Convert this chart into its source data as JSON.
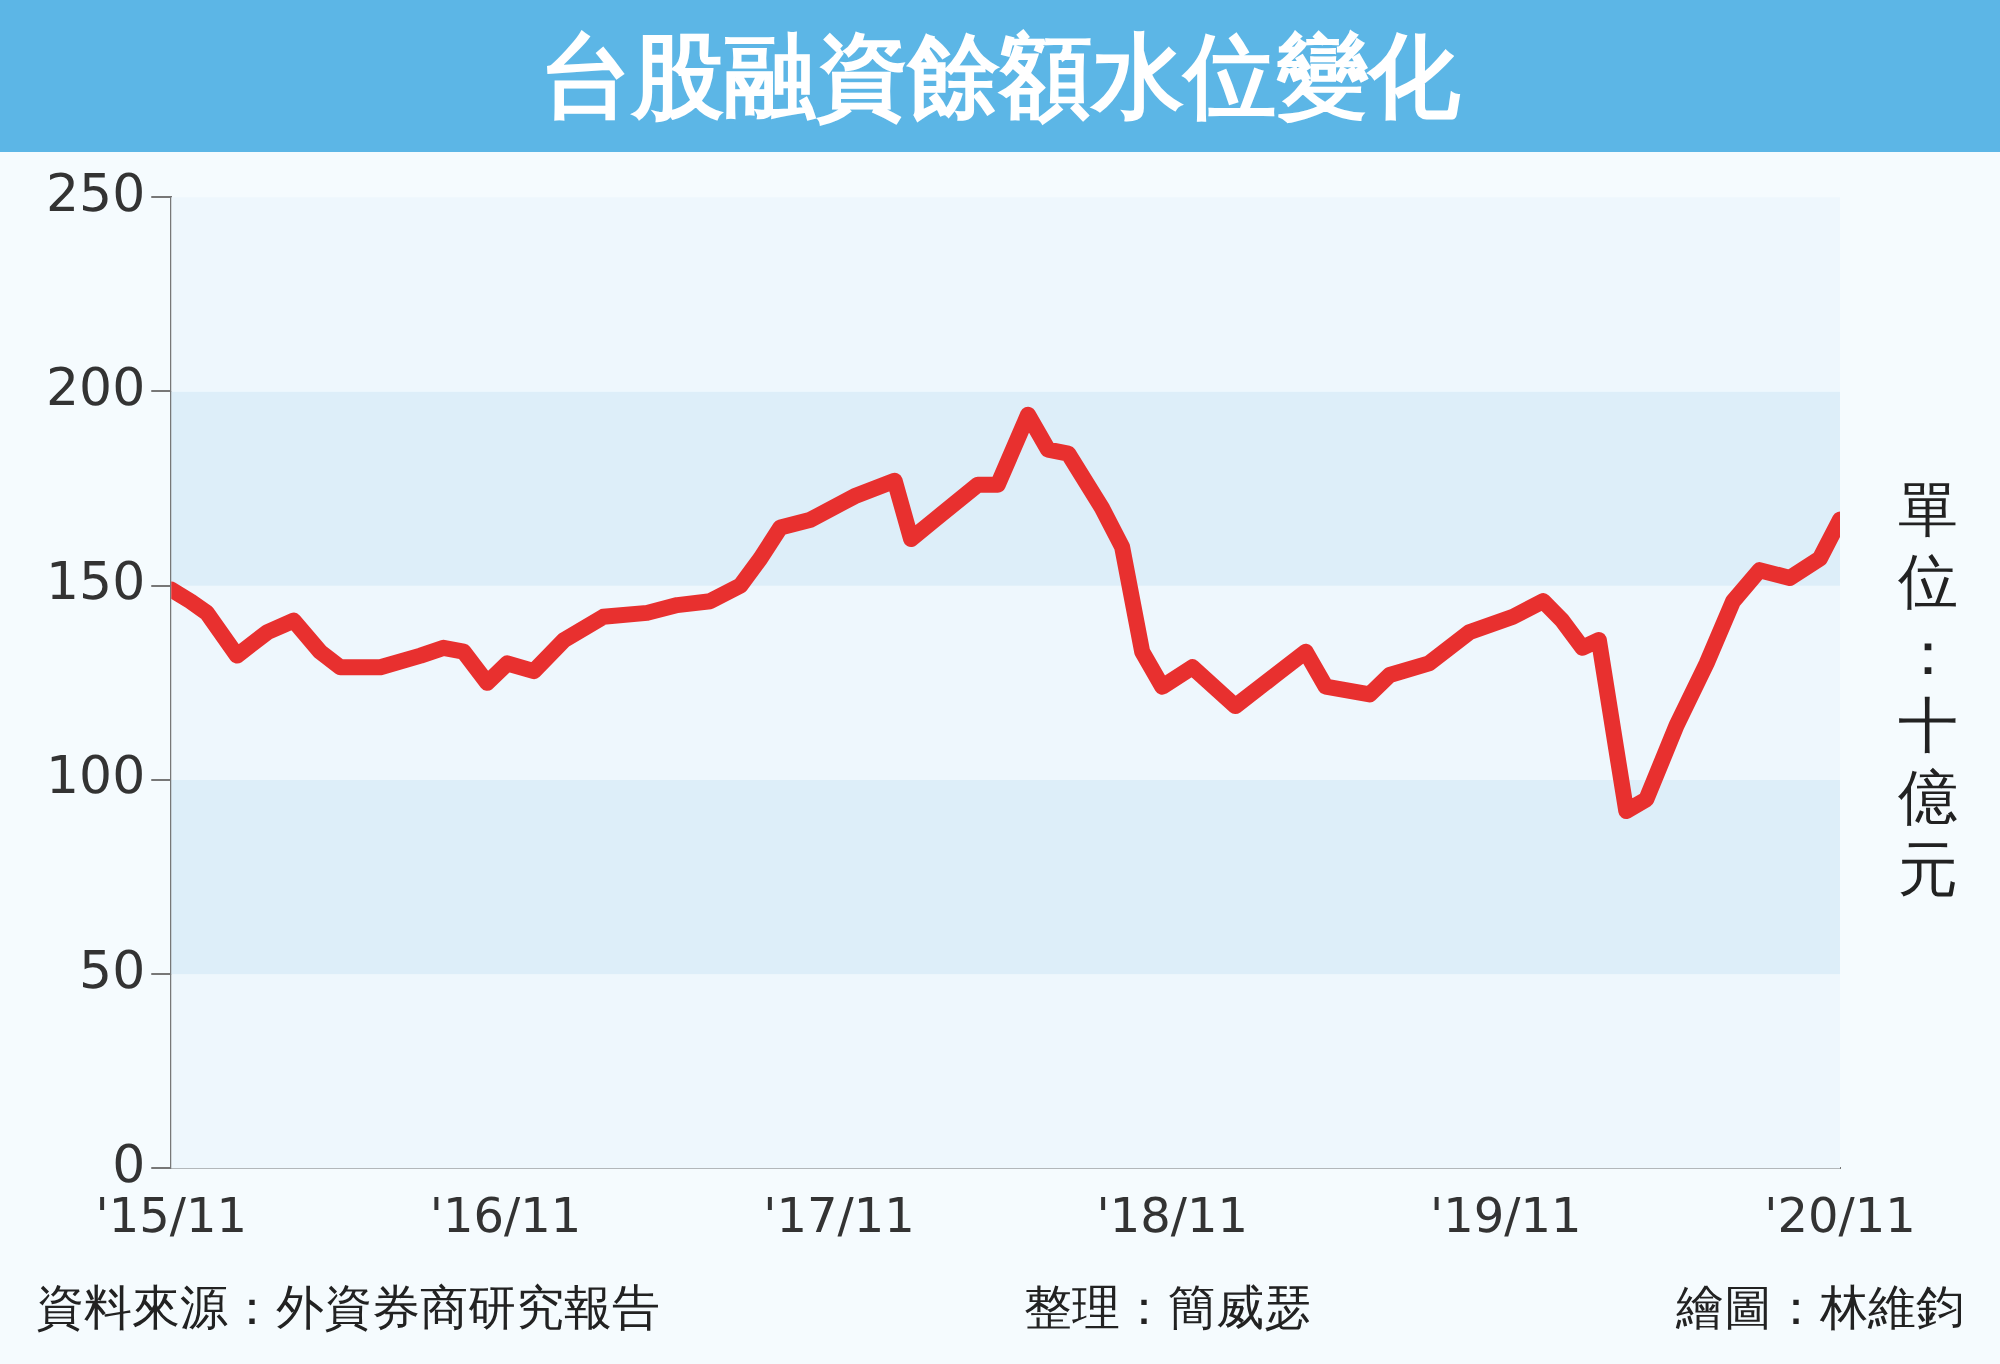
{
  "chart_data": {
    "type": "line",
    "title": "台股融資餘額水位變化",
    "ylabel": "單位：十億元",
    "x": [
      "2015-11-01",
      "2015-11-22",
      "2015-12-10",
      "2016-01-12",
      "2016-02-14",
      "2016-03-14",
      "2016-04-12",
      "2016-05-04",
      "2016-06-17",
      "2016-07-31",
      "2016-08-25",
      "2016-09-16",
      "2016-10-12",
      "2016-11-03",
      "2016-12-02",
      "2017-01-04",
      "2017-02-16",
      "2017-04-05",
      "2017-05-08",
      "2017-06-13",
      "2017-07-16",
      "2017-08-07",
      "2017-08-29",
      "2017-10-01",
      "2017-11-18",
      "2018-01-01",
      "2018-01-19",
      "2018-02-14",
      "2018-04-02",
      "2018-04-24",
      "2018-05-27",
      "2018-06-18",
      "2018-07-10",
      "2018-08-16",
      "2018-09-07",
      "2018-09-29",
      "2018-10-21",
      "2018-11-23",
      "2019-01-09",
      "2019-02-22",
      "2019-03-27",
      "2019-04-18",
      "2019-06-05",
      "2019-06-27",
      "2019-08-09",
      "2019-09-22",
      "2019-11-09",
      "2019-12-12",
      "2020-01-02",
      "2020-01-24",
      "2020-02-11",
      "2020-03-01",
      "2020-03-12",
      "2020-04-03",
      "2020-05-06",
      "2020-06-08",
      "2020-07-07",
      "2020-08-05",
      "2020-09-07",
      "2020-10-10",
      "2020-11-01"
    ],
    "series": [
      {
        "color": "#e8302f",
        "values": [
          149,
          146,
          143,
          132,
          138,
          141,
          133,
          129,
          129,
          132,
          134,
          133,
          125,
          130,
          128,
          136,
          142,
          143,
          145,
          146,
          150,
          157,
          165,
          167,
          173,
          177,
          162,
          167,
          176,
          176,
          194,
          185,
          184,
          170,
          160,
          133,
          124,
          129,
          119,
          127,
          133,
          124,
          122,
          127,
          130,
          138,
          142,
          146,
          141,
          134,
          136,
          108,
          92,
          95,
          114,
          130,
          146,
          154,
          152,
          157,
          167
        ]
      }
    ],
    "xlim": [
      "2015-11-01",
      "2020-11-01"
    ],
    "xticks": [
      {
        "value": "2015-11-01",
        "label": "'15/11"
      },
      {
        "value": "2016-11-01",
        "label": "'16/11"
      },
      {
        "value": "2017-11-01",
        "label": "'17/11"
      },
      {
        "value": "2018-11-01",
        "label": "'18/11"
      },
      {
        "value": "2019-11-01",
        "label": "'19/11"
      },
      {
        "value": "2020-11-01",
        "label": "'20/11"
      }
    ],
    "ylim": [
      0,
      250
    ],
    "yticks": [
      0,
      50,
      100,
      150,
      200,
      250
    ],
    "grid": false,
    "marker": "none",
    "line_style": "solid",
    "legend": false,
    "annotations": [
      "資料來源：外資券商研究報告",
      "整理：簡威瑟",
      "繪圖：林維鈞"
    ]
  }
}
